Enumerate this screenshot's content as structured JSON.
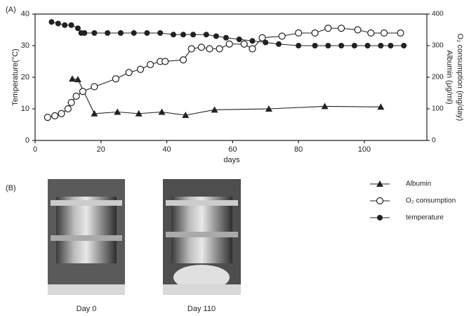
{
  "panel_a_label": "(A)",
  "chart_data": {
    "type": "line",
    "x_label": "days",
    "y_label": "Temperature(°C)",
    "y2_labels": [
      "O₂ consumption (mg/day)",
      "Albumin (μg/ml)"
    ],
    "xlim": [
      0,
      119
    ],
    "xticks": [
      0,
      20,
      40,
      60,
      80,
      100
    ],
    "ylim": [
      0,
      40
    ],
    "yticks": [
      0,
      10,
      20,
      30,
      40
    ],
    "y2lim": [
      0,
      400
    ],
    "y2ticks": [
      0,
      100,
      200,
      300,
      400
    ],
    "series": [
      {
        "name": "Albumin",
        "color": "#222222",
        "marker": "triangle",
        "axis": "y2",
        "x": [
          11.3,
          13,
          18,
          25,
          31.5,
          38.5,
          45.7,
          54.5,
          71,
          88,
          105
        ],
        "values": [
          195,
          193,
          85,
          90,
          85,
          90,
          80,
          97,
          100,
          108,
          106
        ]
      },
      {
        "name": "O₂ consumption",
        "color": "#222222",
        "marker": "open-circle",
        "axis": "y2",
        "x": [
          3.8,
          6,
          8,
          10,
          11,
          12.5,
          14.5,
          18,
          24.5,
          28.5,
          32,
          35,
          38,
          39.5,
          45,
          47.5,
          50.5,
          53,
          56,
          59,
          63.5,
          66,
          69,
          75,
          80,
          85,
          89,
          93,
          98,
          102,
          106,
          111
        ],
        "values": [
          73,
          78,
          85,
          100,
          120,
          140,
          155,
          170,
          195,
          215,
          225,
          240,
          250,
          250,
          255,
          290,
          295,
          290,
          290,
          305,
          305,
          290,
          325,
          330,
          340,
          340,
          355,
          355,
          350,
          340,
          340,
          340
        ]
      },
      {
        "name": "temperature",
        "color": "#222222",
        "marker": "filled-circle",
        "x": [
          5,
          7,
          9,
          11,
          13,
          14,
          15,
          18,
          22,
          26,
          30,
          34,
          38,
          42,
          45,
          48,
          52,
          55,
          58,
          62,
          66,
          70,
          74,
          80,
          85,
          89,
          93,
          97,
          101,
          105,
          108,
          112
        ],
        "values": [
          37.5,
          37,
          36.5,
          36.5,
          35.5,
          34,
          34,
          34,
          34,
          34,
          34,
          34,
          34,
          33.5,
          33.5,
          33.5,
          33.5,
          33,
          32.5,
          32,
          31.5,
          31,
          30.5,
          30,
          30,
          30,
          30,
          30,
          30,
          30,
          30,
          30
        ]
      }
    ]
  },
  "panel_b": {
    "label": "(B)",
    "captions": [
      "Day 0",
      "Day 110"
    ]
  }
}
